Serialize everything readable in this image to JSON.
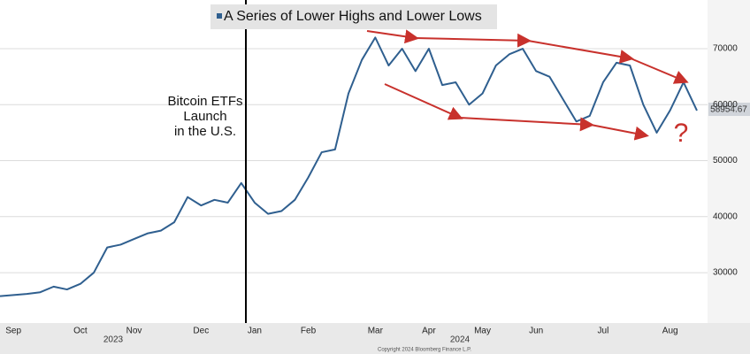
{
  "chart_data": {
    "type": "line",
    "title": "A Series of Lower Highs and Lower Lows",
    "categories": [
      null,
      "Sep",
      null,
      null,
      null,
      null,
      "Oct",
      null,
      null,
      null,
      "Nov",
      null,
      null,
      null,
      null,
      "Dec",
      null,
      null,
      null,
      "Jan",
      null,
      null,
      null,
      "Feb",
      null,
      null,
      null,
      null,
      "Mar",
      null,
      null,
      null,
      "Apr",
      null,
      null,
      null,
      "May",
      null,
      null,
      null,
      "Jun",
      null,
      null,
      null,
      null,
      "Jul",
      null,
      null,
      null,
      null,
      "Aug",
      null,
      null
    ],
    "values": [
      25800,
      26000,
      26200,
      26500,
      27500,
      27000,
      28000,
      30000,
      34500,
      35000,
      36000,
      37000,
      37500,
      39000,
      43500,
      42000,
      43000,
      42500,
      46000,
      42500,
      40500,
      41000,
      43000,
      47000,
      51500,
      52000,
      62000,
      68000,
      72000,
      67000,
      70000,
      66000,
      70000,
      63500,
      64000,
      60000,
      62000,
      67000,
      69000,
      70000,
      66000,
      65000,
      61000,
      57000,
      58000,
      64000,
      67500,
      67000,
      60000,
      55000,
      59000,
      64000,
      58954.67
    ],
    "color": "#2f5f8f",
    "ylim": [
      21000,
      78700
    ],
    "yticks": [
      30000,
      40000,
      50000,
      60000,
      70000
    ],
    "grid": true,
    "years": [
      "2023",
      "2024"
    ],
    "last_price_label": "58954.67",
    "annotation": [
      "Bitcoin ETFs",
      "Launch",
      "in the U.S."
    ],
    "question_mark": "?",
    "footer": "Copyright 2024 Bloomberg Finance L.P."
  }
}
